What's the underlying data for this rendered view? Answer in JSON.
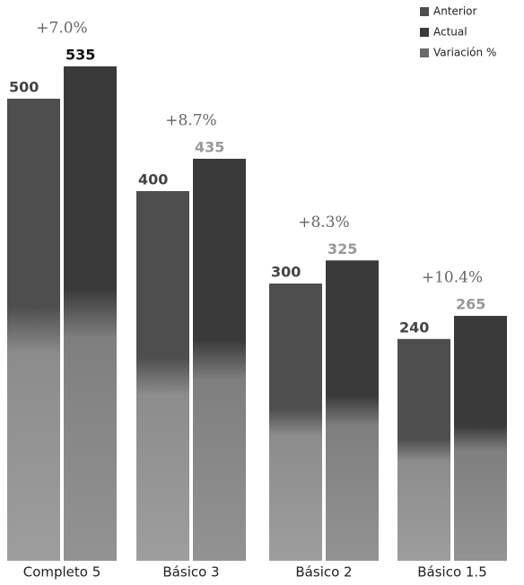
{
  "chart_data": {
    "type": "bar",
    "categories": [
      "Completo 5",
      "Básico 3",
      "Básico 2",
      "Básico 1.5"
    ],
    "series": [
      {
        "name": "Anterior",
        "color": "#4e4e4e",
        "values": [
          500,
          400,
          300,
          240
        ]
      },
      {
        "name": "Actual",
        "color": "#3a3a3a",
        "values": [
          535,
          435,
          325,
          265
        ]
      },
      {
        "name": "Variación %",
        "color": "#6a6a6a",
        "values": [
          7.0,
          8.7,
          8.3,
          10.4
        ],
        "value_labels": [
          "+7.0%",
          "+8.7%",
          "+8.3%",
          "+10.4%"
        ]
      }
    ],
    "legend": "top-right"
  }
}
